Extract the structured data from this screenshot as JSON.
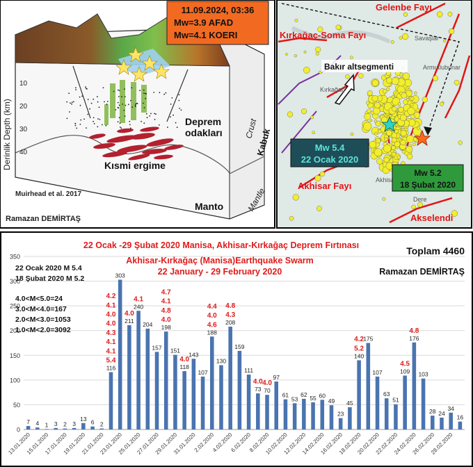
{
  "figure": {
    "event_box": {
      "line1": "11.09.2024, 03:36",
      "line2": "Mw=3.9 AFAD",
      "line3": "Mw=4.1 KOERI"
    },
    "block": {
      "ylabel": "Derinlik Depth (km)",
      "depth_ticks": [
        "10",
        "20",
        "30",
        "40"
      ],
      "label_deprem_1": "Deprem",
      "label_deprem_2": "odakları",
      "label_kismi": "Kısmi ergime",
      "label_crust": "Crust",
      "label_kabuk": "Kabuk",
      "label_mantle": "Mantle",
      "label_manto": "Manto",
      "citation": "Muirhead et al. 2017",
      "author": "Ramazan DEMİRTAŞ"
    },
    "map": {
      "gelenbe": "Gelenbe Fayı",
      "kirkagac_soma": "Kırkağaç-Soma Fayı",
      "bakir": "Bakır altsegmenti",
      "akhisar_fault": "Akhisar Fayı",
      "akselendi": "Akselendi",
      "town_kirkagac": "Kırkağaç",
      "town_akhisar": "Akhisar",
      "town_dere": "Dere",
      "town_savaslar": "Savaşlar",
      "town_armutlu": "Armutlubunar",
      "box1_line1": "Mw 5.4",
      "box1_line2": "22 Ocak 2020",
      "box2_line1": "Mw 5.2",
      "box2_line2": "18 Şubat 2020",
      "colors": {
        "fault": "#e01515",
        "teal_box": "#1e4d57",
        "green_box": "#2f9a3c",
        "label_red": "#e01515"
      }
    }
  },
  "chart_data": {
    "type": "bar",
    "title": "22 Ocak -29 Şubat 2020 Manisa, Akhisar-Kırkağaç Deprem Fırtınası",
    "subtitle1": "Akhisar-Kırkağaç (Manisa)Earthquake Swarm",
    "subtitle2": "22 January - 29 February 2020",
    "total_label": "Toplam 4460",
    "author": "Ramazan DEMİRTAŞ",
    "ylim": [
      0,
      350
    ],
    "yticks": [
      "0",
      "50",
      "100",
      "150",
      "200",
      "250",
      "300",
      "350"
    ],
    "xtick_labels": [
      "13.01.2020",
      "15.01.2020",
      "17.01.2020",
      "19.01.2020",
      "21.01.2020",
      "23.01.2020",
      "25.01.2020",
      "27.01.2020",
      "29.01.2020",
      "31.01.2020",
      "2.02.2020",
      "4.02.2020",
      "6.02.2020",
      "8.02.2020",
      "10.02.2020",
      "12.02.2020",
      "14.02.2020",
      "16.02.2020",
      "18.02.2020",
      "20.02.2020",
      "22.02.2020",
      "24.02.2020",
      "26.02.2020",
      "28.02.2020"
    ],
    "values": [
      7,
      4,
      1,
      3,
      2,
      3,
      13,
      6,
      2,
      116,
      303,
      211,
      240,
      204,
      157,
      198,
      151,
      118,
      143,
      107,
      188,
      130,
      208,
      159,
      111,
      73,
      70,
      97,
      61,
      53,
      62,
      55,
      60,
      49,
      23,
      45,
      140,
      175,
      107,
      63,
      51,
      109,
      176,
      103,
      28,
      24,
      34,
      16
    ],
    "magnitude_labels": [
      {
        "i": 9,
        "lines": [
          "4.2",
          "4.1",
          "4.0",
          "4.0",
          "4.3",
          "4.1",
          "4.1",
          "5.4"
        ]
      },
      {
        "i": 11,
        "lines": [
          "4.0"
        ]
      },
      {
        "i": 12,
        "lines": [
          "4.1"
        ]
      },
      {
        "i": 15,
        "lines": [
          "4.7",
          "4.1",
          "4.8",
          "4.0"
        ]
      },
      {
        "i": 17,
        "lines": [
          "4.0"
        ]
      },
      {
        "i": 20,
        "lines": [
          "4.4",
          "4.0",
          "4.6"
        ]
      },
      {
        "i": 22,
        "lines": [
          "4.8",
          "4.3"
        ]
      },
      {
        "i": 25,
        "lines": [
          "4.0"
        ]
      },
      {
        "i": 26,
        "lines": [
          "4.0"
        ]
      },
      {
        "i": 36,
        "lines": [
          "4.2",
          "5.2"
        ]
      },
      {
        "i": 41,
        "lines": [
          "4.5"
        ]
      },
      {
        "i": 42,
        "lines": [
          "4.8"
        ]
      }
    ],
    "legend_lines": [
      "22 Ocak 2020 M 5.4",
      "18 Şubat 2020 M 5.2",
      "4.0<M<5.0=24",
      "3.0<M<4.0=167",
      "2.0<M<3.0=1053",
      "1.0<M<2.0=3092"
    ],
    "colors": {
      "bar": "#4a74b0",
      "title": "#e01b1b",
      "mag_label": "#e01b1b",
      "grid": "#d9d9d9",
      "text": "#222222"
    }
  }
}
